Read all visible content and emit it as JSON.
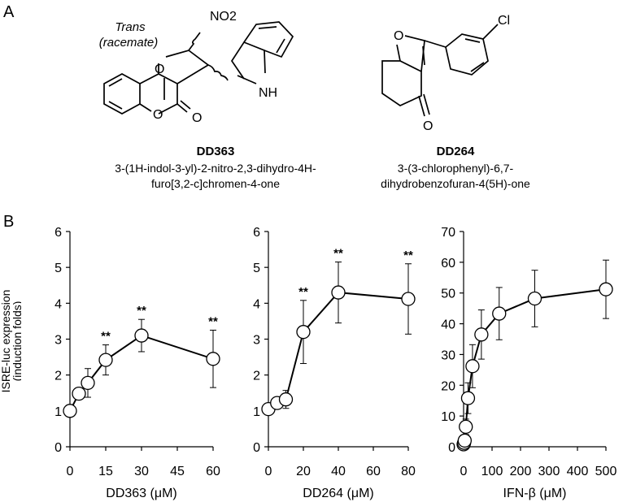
{
  "panels": {
    "a_label": "A",
    "b_label": "B"
  },
  "compounds": [
    {
      "name": "DD363",
      "description_line1": "3-(1H-indol-3-yl)-2-nitro-2,3-dihydro-4H-",
      "description_line2": "furo[3,2-c]chromen-4-one",
      "note_line1": "Trans",
      "note_line2": "(racemate)",
      "atoms": {
        "nitro": "NO2",
        "ring_o1": "O",
        "ring_o2": "O",
        "carbonyl_o": "O",
        "nh": "NH"
      }
    },
    {
      "name": "DD264",
      "description_line1": "3-(3-chlorophenyl)-6,7-",
      "description_line2": "dihydrobenzofuran-4(5H)-one",
      "atoms": {
        "ring_o": "O",
        "carbonyl_o": "O",
        "cl": "Cl"
      }
    }
  ],
  "shared_ylabel_line1": "ISRE-luc expression",
  "shared_ylabel_line2": "(induction folds)",
  "chart_data": [
    {
      "type": "line",
      "xlabel": "DD363 (μM)",
      "ylabel": "ISRE-luc expression (induction folds)",
      "xlim": [
        0,
        60
      ],
      "ylim": [
        0,
        6
      ],
      "xticks": [
        0,
        15,
        30,
        45,
        60
      ],
      "yticks": [
        0,
        1,
        2,
        3,
        4,
        5,
        6
      ],
      "x": [
        0,
        3.75,
        7.5,
        15,
        30,
        60
      ],
      "y": [
        1.0,
        1.48,
        1.78,
        2.42,
        3.1,
        2.45
      ],
      "err": [
        0.0,
        0.12,
        0.4,
        0.42,
        0.45,
        0.8
      ],
      "significance": [
        "",
        "",
        "",
        "**",
        "**",
        "**"
      ]
    },
    {
      "type": "line",
      "xlabel": "DD264 (μM)",
      "xlim": [
        0,
        80
      ],
      "ylim": [
        0,
        6
      ],
      "xticks": [
        0,
        20,
        40,
        60,
        80
      ],
      "yticks": [
        0,
        1,
        2,
        3,
        4,
        5,
        6
      ],
      "x": [
        0,
        5,
        10,
        20,
        40,
        80
      ],
      "y": [
        1.05,
        1.22,
        1.32,
        3.2,
        4.3,
        4.12
      ],
      "err": [
        0.0,
        0.1,
        0.25,
        0.88,
        0.85,
        0.98
      ],
      "significance": [
        "",
        "",
        "",
        "**",
        "**",
        "**"
      ]
    },
    {
      "type": "line",
      "xlabel": "IFN-β (μM)",
      "xlim": [
        0,
        500
      ],
      "ylim": [
        0,
        70
      ],
      "xticks": [
        0,
        100,
        200,
        300,
        400,
        500
      ],
      "yticks": [
        0,
        10,
        20,
        30,
        40,
        50,
        60,
        70
      ],
      "x": [
        0,
        1.95,
        3.9,
        7.8,
        15.6,
        31.25,
        62.5,
        125,
        250,
        500
      ],
      "y": [
        0.8,
        1.3,
        2.0,
        6.5,
        15.8,
        26.2,
        36.5,
        43.3,
        48.2,
        51.2
      ],
      "err": [
        0.3,
        0.5,
        1.0,
        2.5,
        5.0,
        7.0,
        8.0,
        8.5,
        9.2,
        9.5
      ],
      "significance": []
    }
  ]
}
